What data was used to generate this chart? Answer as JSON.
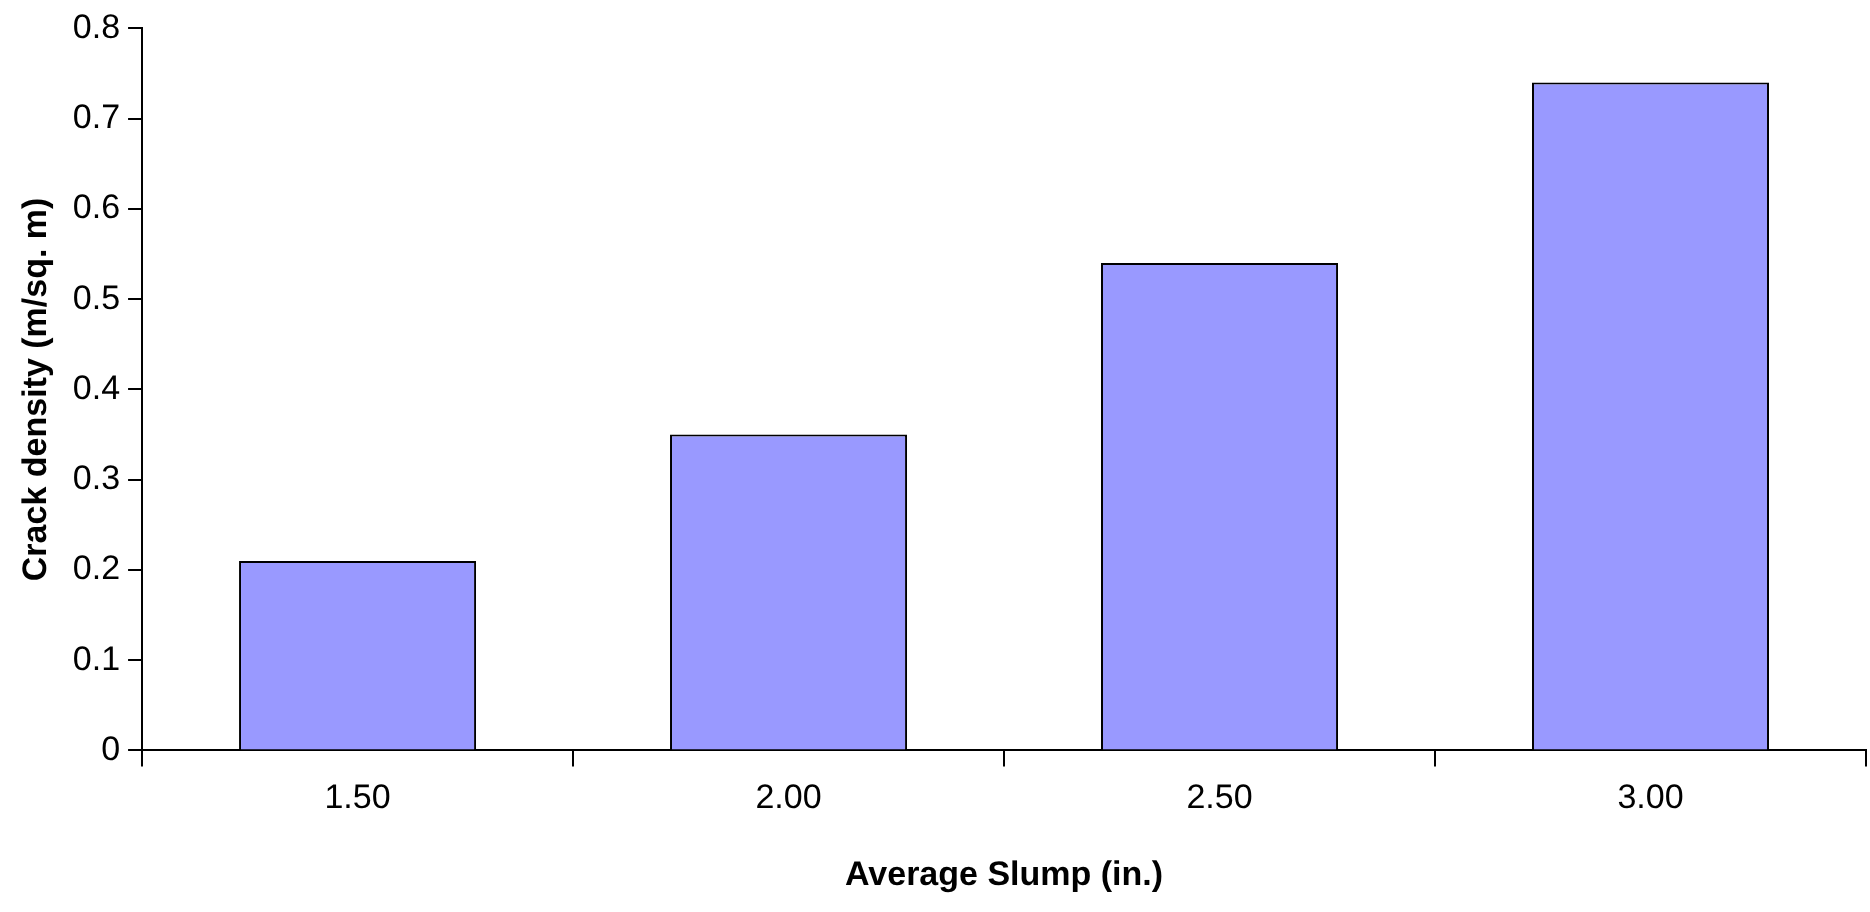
{
  "chart_data": {
    "type": "bar",
    "xlabel": "Average Slump (in.)",
    "ylabel": "Crack density (m/sq. m)",
    "categories": [
      "1.50",
      "2.00",
      "2.50",
      "3.00"
    ],
    "values": [
      0.21,
      0.35,
      0.54,
      0.74
    ],
    "color": "#9999ff",
    "ylim": [
      0,
      0.8
    ],
    "yticks": [
      0,
      0.1,
      0.2,
      0.3,
      0.4,
      0.5,
      0.6,
      0.7,
      0.8
    ],
    "grid": false,
    "legend": false
  }
}
